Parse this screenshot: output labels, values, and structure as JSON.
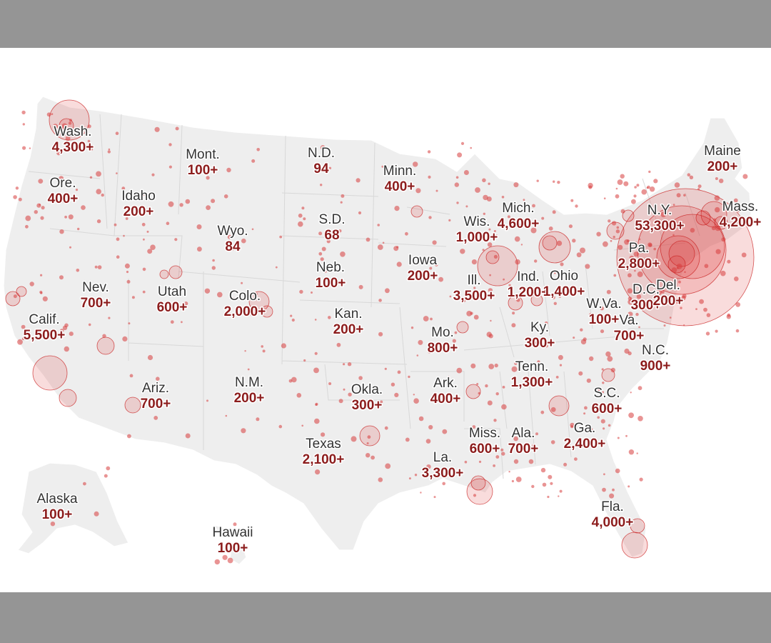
{
  "colors": {
    "band": "#959595",
    "land": "#eeeeee",
    "bubble_fill": "rgba(220,40,40,0.16)",
    "bubble_stroke": "#c81e1e",
    "state_label": "#333333",
    "case_count": "#8c1c1c"
  },
  "map": {
    "states": [
      {
        "name": "Wash.",
        "cases": "4,300+"
      },
      {
        "name": "Ore.",
        "cases": "400+"
      },
      {
        "name": "Calif.",
        "cases": "5,500+"
      },
      {
        "name": "Idaho",
        "cases": "200+"
      },
      {
        "name": "Nev.",
        "cases": "700+"
      },
      {
        "name": "Mont.",
        "cases": "100+"
      },
      {
        "name": "Wyo.",
        "cases": "84"
      },
      {
        "name": "Utah",
        "cases": "600+"
      },
      {
        "name": "Colo.",
        "cases": "2,000+"
      },
      {
        "name": "Ariz.",
        "cases": "700+"
      },
      {
        "name": "N.M.",
        "cases": "200+"
      },
      {
        "name": "N.D.",
        "cases": "94"
      },
      {
        "name": "S.D.",
        "cases": "68"
      },
      {
        "name": "Neb.",
        "cases": "100+"
      },
      {
        "name": "Kan.",
        "cases": "200+"
      },
      {
        "name": "Okla.",
        "cases": "300+"
      },
      {
        "name": "Texas",
        "cases": "2,100+"
      },
      {
        "name": "Minn.",
        "cases": "400+"
      },
      {
        "name": "Iowa",
        "cases": "200+"
      },
      {
        "name": "Mo.",
        "cases": "800+"
      },
      {
        "name": "Ark.",
        "cases": "400+"
      },
      {
        "name": "La.",
        "cases": "3,300+"
      },
      {
        "name": "Wis.",
        "cases": "1,000+"
      },
      {
        "name": "Ill.",
        "cases": "3,500+"
      },
      {
        "name": "Mich.",
        "cases": "4,600+"
      },
      {
        "name": "Ind.",
        "cases": "1,200+"
      },
      {
        "name": "Ohio",
        "cases": "1,400+"
      },
      {
        "name": "Ky.",
        "cases": "300+"
      },
      {
        "name": "Tenn.",
        "cases": "1,300+"
      },
      {
        "name": "Miss.",
        "cases": "600+"
      },
      {
        "name": "Ala.",
        "cases": "700+"
      },
      {
        "name": "Ga.",
        "cases": "2,400+"
      },
      {
        "name": "Fla.",
        "cases": "4,000+"
      },
      {
        "name": "S.C.",
        "cases": "600+"
      },
      {
        "name": "N.C.",
        "cases": "900+"
      },
      {
        "name": "Va.",
        "cases": "700+"
      },
      {
        "name": "W.Va.",
        "cases": "100+"
      },
      {
        "name": "D.C.",
        "cases": "300+"
      },
      {
        "name": "Del.",
        "cases": "200+"
      },
      {
        "name": "Pa.",
        "cases": "2,800+"
      },
      {
        "name": "N.Y.",
        "cases": "53,300+"
      },
      {
        "name": "Mass.",
        "cases": "4,200+"
      },
      {
        "name": "Maine",
        "cases": "200+"
      },
      {
        "name": "Alaska",
        "cases": "100+"
      },
      {
        "name": "Hawaii",
        "cases": "100+"
      }
    ]
  }
}
